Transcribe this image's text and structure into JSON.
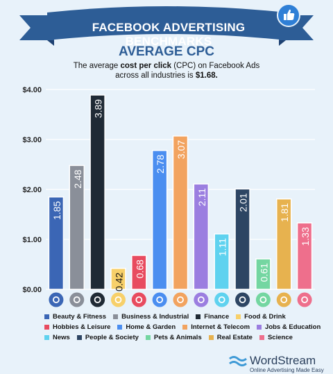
{
  "header": {
    "banner_title": "FACEBOOK ADVERTISING BENCHMARKS",
    "subtitle": "AVERAGE CPC",
    "desc_line1_pre": "The average ",
    "desc_line1_bold": "cost per click",
    "desc_line1_post": " (CPC) on Facebook Ads",
    "desc_line2_pre": "across all industries is ",
    "desc_line2_bold": "$1.68."
  },
  "chart_data": {
    "type": "bar",
    "categories": [
      "Beauty & Fitness",
      "Business & Industrial",
      "Finance",
      "Food & Drink",
      "Hobbies & Leisure",
      "Home & Garden",
      "Internet & Telecom",
      "Jobs & Education",
      "News",
      "People & Society",
      "Pets & Animals",
      "Real Estate",
      "Science"
    ],
    "values": [
      1.85,
      2.48,
      3.89,
      0.42,
      0.68,
      2.78,
      3.07,
      2.11,
      1.11,
      2.01,
      0.61,
      1.81,
      1.33
    ],
    "labels": [
      "1.85",
      "2.48",
      "3.89",
      "0.42",
      "0.68",
      "2.78",
      "3.07",
      "2.11",
      "1.11",
      "2.01",
      "0.61",
      "1.81",
      "1.33"
    ],
    "colors": [
      "#3b66b5",
      "#8a8f99",
      "#1f2a35",
      "#f7d06a",
      "#e84b5f",
      "#4b8ef0",
      "#f2a35f",
      "#9b7ee0",
      "#5fd2ef",
      "#2d4563",
      "#74d6a1",
      "#e7b24f",
      "#ee6f8c"
    ],
    "label_colors": [
      "#ffffff",
      "#ffffff",
      "#ffffff",
      "#111111",
      "#ffffff",
      "#ffffff",
      "#ffffff",
      "#ffffff",
      "#ffffff",
      "#ffffff",
      "#ffffff",
      "#ffffff",
      "#ffffff"
    ],
    "icons": [
      "bottle-icon",
      "bar-chart-icon",
      "coin-icon",
      "fork-knife-icon",
      "puzzle-icon",
      "flower-icon",
      "globe-icon",
      "briefcase-icon",
      "newspaper-icon",
      "people-icon",
      "paw-icon",
      "house-icon",
      "flask-icon"
    ],
    "y_ticks": [
      "$0.00",
      "$1.00",
      "$2.00",
      "$3.00",
      "$4.00"
    ],
    "ylim": [
      0,
      4
    ],
    "grid": true
  },
  "legend": [
    [
      {
        "label": "Beauty & Fitness",
        "color": "#3b66b5"
      },
      {
        "label": "Business & Industrial",
        "color": "#8a8f99"
      },
      {
        "label": "Finance",
        "color": "#1f2a35"
      },
      {
        "label": "Food & Drink",
        "color": "#f7d06a"
      }
    ],
    [
      {
        "label": "Hobbies & Leisure",
        "color": "#e84b5f"
      },
      {
        "label": "Home & Garden",
        "color": "#4b8ef0"
      },
      {
        "label": "Internet & Telecom",
        "color": "#f2a35f"
      },
      {
        "label": "Jobs & Education",
        "color": "#9b7ee0"
      }
    ],
    [
      {
        "label": "News",
        "color": "#5fd2ef"
      },
      {
        "label": "People & Society",
        "color": "#2d4563"
      },
      {
        "label": "Pets & Animals",
        "color": "#74d6a1"
      },
      {
        "label": "Real Estate",
        "color": "#e7b24f"
      },
      {
        "label": "Science",
        "color": "#ee6f8c"
      }
    ]
  ],
  "brand": {
    "name": "WordStream",
    "tagline": "Online Advertising Made Easy"
  },
  "colors": {
    "ribbon": "#2d5d96",
    "ribbon_dark": "#1e4272",
    "background": "#e8f2fa",
    "thumb": "#2f7fd6"
  }
}
